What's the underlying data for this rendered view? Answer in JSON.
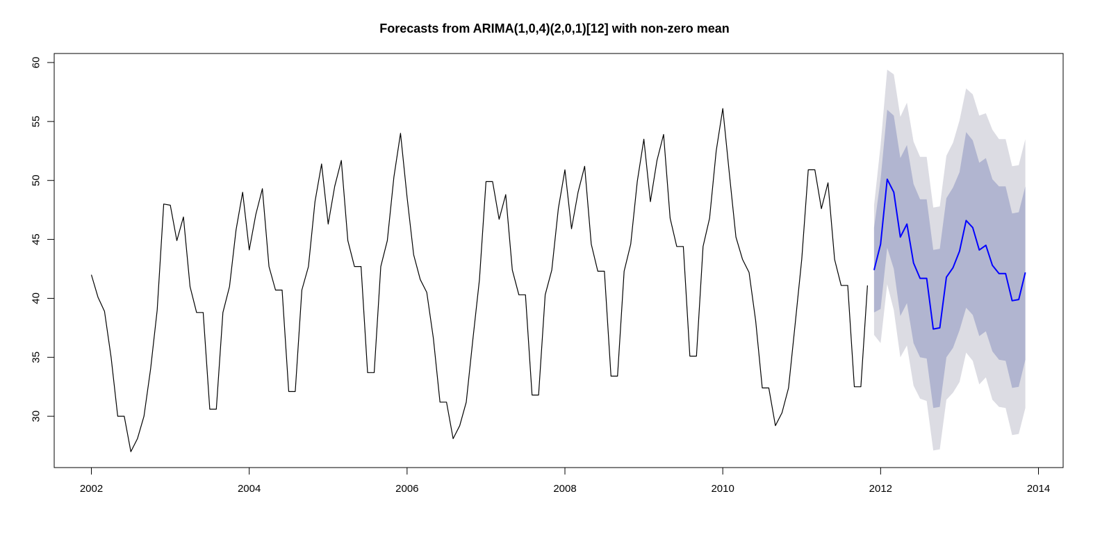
{
  "chart_data": {
    "type": "line",
    "title": "Forecasts from ARIMA(1,0,4)(2,0,1)[12] with non-zero mean",
    "xlabel": "",
    "ylabel": "",
    "xlim": [
      2002,
      2014
    ],
    "ylim": [
      25,
      60
    ],
    "x_ticks": [
      2002,
      2004,
      2006,
      2008,
      2010,
      2012,
      2014
    ],
    "y_ticks": [
      30,
      35,
      40,
      45,
      50,
      55,
      60
    ],
    "grid": false,
    "legend": "none",
    "series": [
      {
        "role": "observed",
        "color": "#000000",
        "start_year": 2002,
        "frequency": 12,
        "values": [
          42.0,
          40.1,
          38.9,
          35.0,
          30.0,
          30.0,
          27.0,
          28.1,
          30.0,
          34.0,
          39.0,
          48.0,
          47.9,
          44.9,
          46.9,
          41.0,
          38.8,
          38.8,
          30.6,
          30.6,
          38.8,
          41.0,
          45.8,
          49.0,
          44.1,
          47.1,
          49.3,
          42.7,
          40.7,
          40.7,
          32.1,
          32.1,
          40.7,
          42.7,
          48.2,
          51.4,
          46.3,
          49.5,
          51.7,
          44.9,
          42.7,
          42.7,
          33.7,
          33.7,
          42.7,
          44.9,
          50.3,
          54.0,
          48.6,
          43.7,
          41.6,
          40.5,
          36.6,
          31.2,
          31.2,
          28.1,
          29.2,
          31.2,
          36.5,
          41.6,
          49.9,
          49.9,
          46.7,
          48.8,
          42.4,
          40.3,
          40.3,
          31.8,
          31.8,
          40.3,
          42.4,
          47.6,
          50.9,
          45.9,
          49.0,
          51.2,
          44.6,
          42.3,
          42.3,
          33.4,
          33.4,
          42.3,
          44.6,
          49.9,
          53.5,
          48.2,
          51.7,
          53.9,
          46.8,
          44.4,
          44.4,
          35.1,
          35.1,
          44.4,
          46.8,
          52.5,
          56.1,
          50.6,
          45.2,
          43.3,
          42.2,
          38.1,
          32.4,
          32.4,
          29.2,
          30.3,
          32.4,
          37.8,
          43.3,
          50.9,
          50.9,
          47.6,
          49.8,
          43.3,
          41.1,
          41.1,
          32.5,
          32.5,
          41.1
        ]
      },
      {
        "role": "forecast",
        "color": "#0000ff",
        "start_year": 2011.9167,
        "frequency": 12,
        "values": [
          42.4,
          44.6,
          50.1,
          49.0,
          45.2,
          46.3,
          43.0,
          41.7,
          41.7,
          37.4,
          37.5,
          41.8,
          42.6,
          44.0,
          46.6,
          46.0,
          44.1,
          44.5,
          42.8,
          42.1,
          42.1,
          39.8,
          39.9,
          42.2
        ],
        "interval_80": {
          "color": "#b1b5d0",
          "lower": [
            38.8,
            39.1,
            44.3,
            42.5,
            38.5,
            39.6,
            36.2,
            35.0,
            34.9,
            30.7,
            30.8,
            35.0,
            35.8,
            37.3,
            39.2,
            38.6,
            36.8,
            37.2,
            35.5,
            34.8,
            34.7,
            32.4,
            32.5,
            34.8
          ],
          "upper": [
            46.0,
            50.1,
            56.0,
            55.5,
            51.9,
            53.0,
            49.7,
            48.4,
            48.4,
            44.1,
            44.2,
            48.5,
            49.4,
            50.7,
            54.1,
            53.4,
            51.5,
            51.9,
            50.1,
            49.5,
            49.5,
            47.2,
            47.3,
            49.5
          ]
        },
        "interval_95": {
          "color": "#dcdce3",
          "lower": [
            36.9,
            36.2,
            41.2,
            39.0,
            35.0,
            36.0,
            32.6,
            31.5,
            31.3,
            27.1,
            27.2,
            31.4,
            32.0,
            32.9,
            35.4,
            34.7,
            32.7,
            33.3,
            31.4,
            30.8,
            30.7,
            28.4,
            28.5,
            30.7
          ],
          "upper": [
            47.9,
            53.0,
            59.4,
            59.0,
            55.4,
            56.6,
            53.3,
            52.0,
            52.0,
            47.7,
            47.8,
            52.1,
            53.2,
            55.1,
            57.8,
            57.3,
            55.5,
            55.7,
            54.3,
            53.5,
            53.5,
            51.2,
            51.3,
            53.5
          ]
        }
      }
    ]
  }
}
